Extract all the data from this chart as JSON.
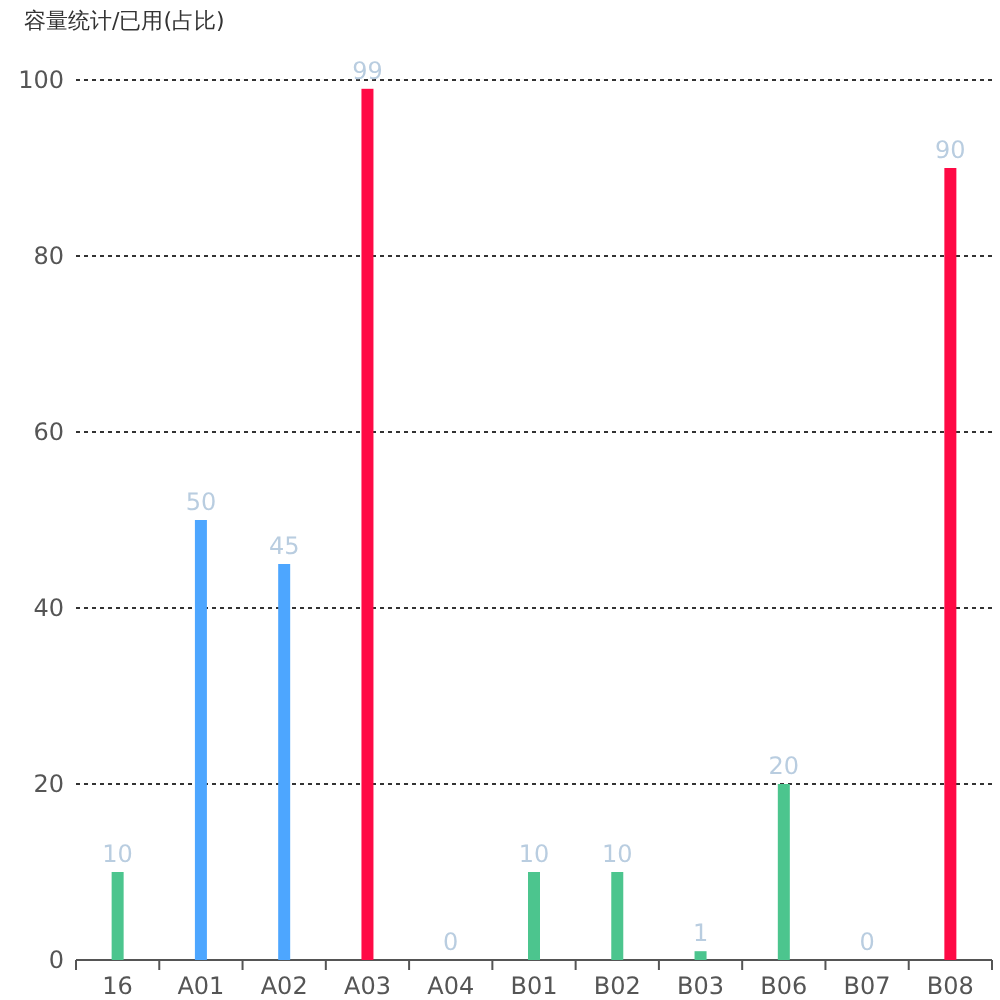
{
  "chart_data": {
    "type": "bar",
    "ylabel": "容量统计/已用(占比)",
    "categories": [
      "16",
      "A01",
      "A02",
      "A03",
      "A04",
      "B01",
      "B02",
      "B03",
      "B06",
      "B07",
      "B08"
    ],
    "values": [
      10,
      50,
      45,
      99,
      0,
      10,
      10,
      1,
      20,
      0,
      90
    ],
    "colors": [
      "#4cc58e",
      "#4da6ff",
      "#4da6ff",
      "#ff0a45",
      "#4da6ff",
      "#4cc58e",
      "#4cc58e",
      "#4cc58e",
      "#4cc58e",
      "#4cc58e",
      "#ff0a45"
    ],
    "ylim": [
      0,
      100
    ],
    "yticks": [
      0,
      20,
      40,
      60,
      80,
      100
    ],
    "grid": "y",
    "data_labels": true
  }
}
